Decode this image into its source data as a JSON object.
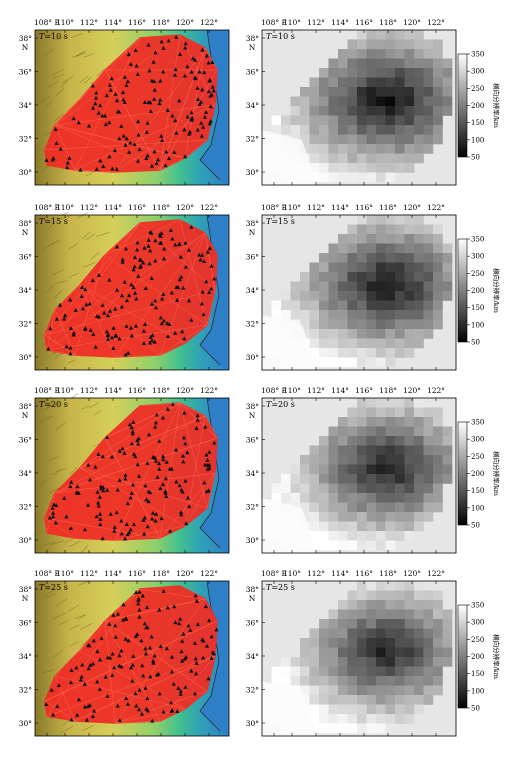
{
  "rows": [
    {
      "period": "T=10 s",
      "period_prefix": "T",
      "period_value": "=10 s"
    },
    {
      "period": "T=15 s",
      "period_prefix": "T",
      "period_value": "=15 s"
    },
    {
      "period": "T=20 s",
      "period_prefix": "T",
      "period_value": "=20 s"
    },
    {
      "period": "T=25 s",
      "period_prefix": "T",
      "period_value": "=25 s"
    }
  ],
  "lon_ticks": [
    "108° E",
    "110°",
    "112°",
    "114°",
    "116°",
    "118°",
    "120°",
    "122°"
  ],
  "lat_ticks": [
    "30°",
    "32°",
    "34°",
    "36°",
    "38°"
  ],
  "lat_unit": "N",
  "colorbar": {
    "label": "横向分辨率/km",
    "ticks": [
      "50",
      "100",
      "150",
      "200",
      "250",
      "300",
      "350"
    ],
    "min": 50,
    "max": 350,
    "colormap": "gray (black = 50 km, white = 350 km)"
  },
  "colors": {
    "ray_paths": "#ef2f26",
    "stations": "#111111",
    "sea": "#2f7fc6",
    "lowland": "#3fbf8f",
    "terrain_low": "#d3c14a",
    "terrain_high": "#8a7a2a"
  }
}
